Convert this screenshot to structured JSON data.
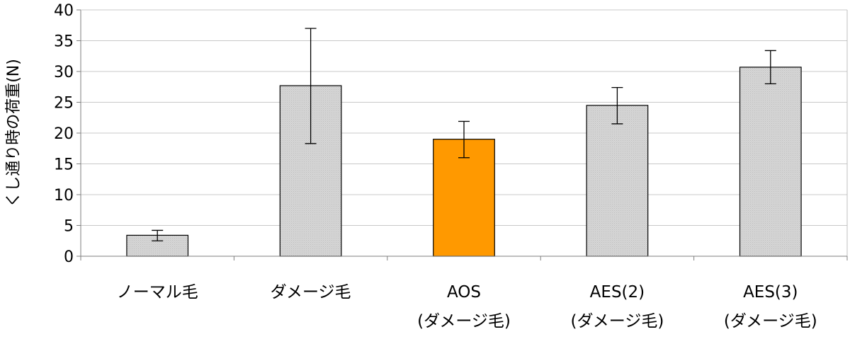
{
  "chart_data": {
    "type": "bar",
    "title": "",
    "xlabel": "",
    "ylabel": "くし通り時の荷重(N)",
    "ylim": [
      0,
      40
    ],
    "yticks": [
      0,
      5,
      10,
      15,
      20,
      25,
      30,
      35,
      40
    ],
    "grid": true,
    "legend": "none",
    "categories": [
      [
        "ノーマル毛"
      ],
      [
        "ダメージ毛"
      ],
      [
        "AOS",
        "(ダメージ毛)"
      ],
      [
        "AES(2)",
        "(ダメージ毛)"
      ],
      [
        "AES(3)",
        "(ダメージ毛)"
      ]
    ],
    "values": [
      3.4,
      27.7,
      19.0,
      24.5,
      30.7
    ],
    "error_low": [
      2.5,
      18.3,
      16.0,
      21.5,
      28.0
    ],
    "error_high": [
      4.2,
      37.0,
      21.9,
      27.4,
      33.4
    ],
    "bar_colors": [
      "#d9d9d9",
      "#d9d9d9",
      "#ff9900",
      "#d9d9d9",
      "#d9d9d9"
    ]
  }
}
